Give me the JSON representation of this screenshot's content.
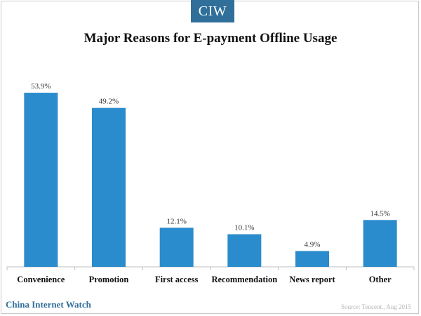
{
  "brand": {
    "badge": "CIW",
    "footer": "China Internet Watch"
  },
  "source": "Source: Tencent., Aug 2015",
  "colors": {
    "bar": "#2a8ccc",
    "badge": "#2f6f9a",
    "axis": "#bfbfbf"
  },
  "chart_data": {
    "type": "bar",
    "title": "Major Reasons for E-payment Offline Usage",
    "categories": [
      "Convenience",
      "Promotion",
      "First access",
      "Recommendation",
      "News report",
      "Other"
    ],
    "values": [
      53.9,
      49.2,
      12.1,
      10.1,
      4.9,
      14.5
    ],
    "value_labels": [
      "53.9%",
      "49.2%",
      "12.1%",
      "10.1%",
      "4.9%",
      "14.5%"
    ],
    "ylim": [
      0,
      60
    ],
    "grid": false,
    "legend": "none"
  }
}
